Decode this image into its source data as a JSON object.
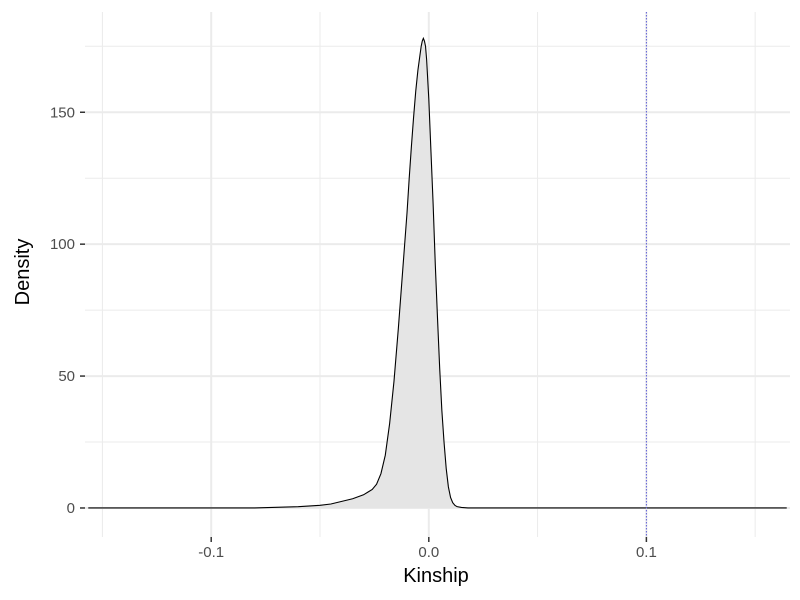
{
  "chart_data": {
    "type": "area",
    "title": "",
    "xlabel": "Kinship",
    "ylabel": "Density",
    "xlim": [
      -0.158,
      0.166
    ],
    "ylim": [
      -11,
      188
    ],
    "x_ticks": [
      -0.1,
      0.0,
      0.1
    ],
    "x_tick_labels": [
      "-0.1",
      "0.0",
      "0.1"
    ],
    "y_ticks": [
      0,
      50,
      100,
      150
    ],
    "y_tick_labels": [
      "0",
      "50",
      "100",
      "150"
    ],
    "grid": true,
    "legend": "none",
    "reference_line": {
      "x": 0.1,
      "style": "dotted",
      "color": "#5b5bd6"
    },
    "fill_color": "#e5e5e5",
    "line_color": "#000000",
    "panel_background": "#ffffff",
    "grid_color": "#ebebeb",
    "series": [
      {
        "x": [
          -0.1565,
          -0.12,
          -0.1,
          -0.08,
          -0.06,
          -0.05,
          -0.045,
          -0.04,
          -0.035,
          -0.03,
          -0.028,
          -0.026,
          -0.024,
          -0.022,
          -0.02,
          -0.018,
          -0.016,
          -0.014,
          -0.012,
          -0.01,
          -0.009,
          -0.008,
          -0.007,
          -0.006,
          -0.005,
          -0.004,
          -0.0035,
          -0.003,
          -0.0025,
          -0.002,
          -0.0015,
          -0.001,
          0.0,
          0.001,
          0.002,
          0.003,
          0.004,
          0.005,
          0.006,
          0.007,
          0.008,
          0.009,
          0.01,
          0.011,
          0.012,
          0.013,
          0.015,
          0.018,
          0.02,
          0.03,
          0.05,
          0.1,
          0.1645
        ],
        "y": [
          0,
          0,
          0,
          0,
          0.5,
          1,
          1.5,
          2.5,
          3.5,
          5,
          6,
          7,
          9,
          13,
          20,
          32,
          48,
          68,
          90,
          112,
          125,
          137,
          148,
          158,
          166,
          172,
          175,
          177,
          178,
          177,
          175,
          170,
          155,
          135,
          115,
          92,
          72,
          53,
          37,
          25,
          15,
          8,
          4,
          2,
          1,
          0.5,
          0.2,
          0,
          0,
          0,
          0,
          0,
          0
        ]
      }
    ]
  }
}
